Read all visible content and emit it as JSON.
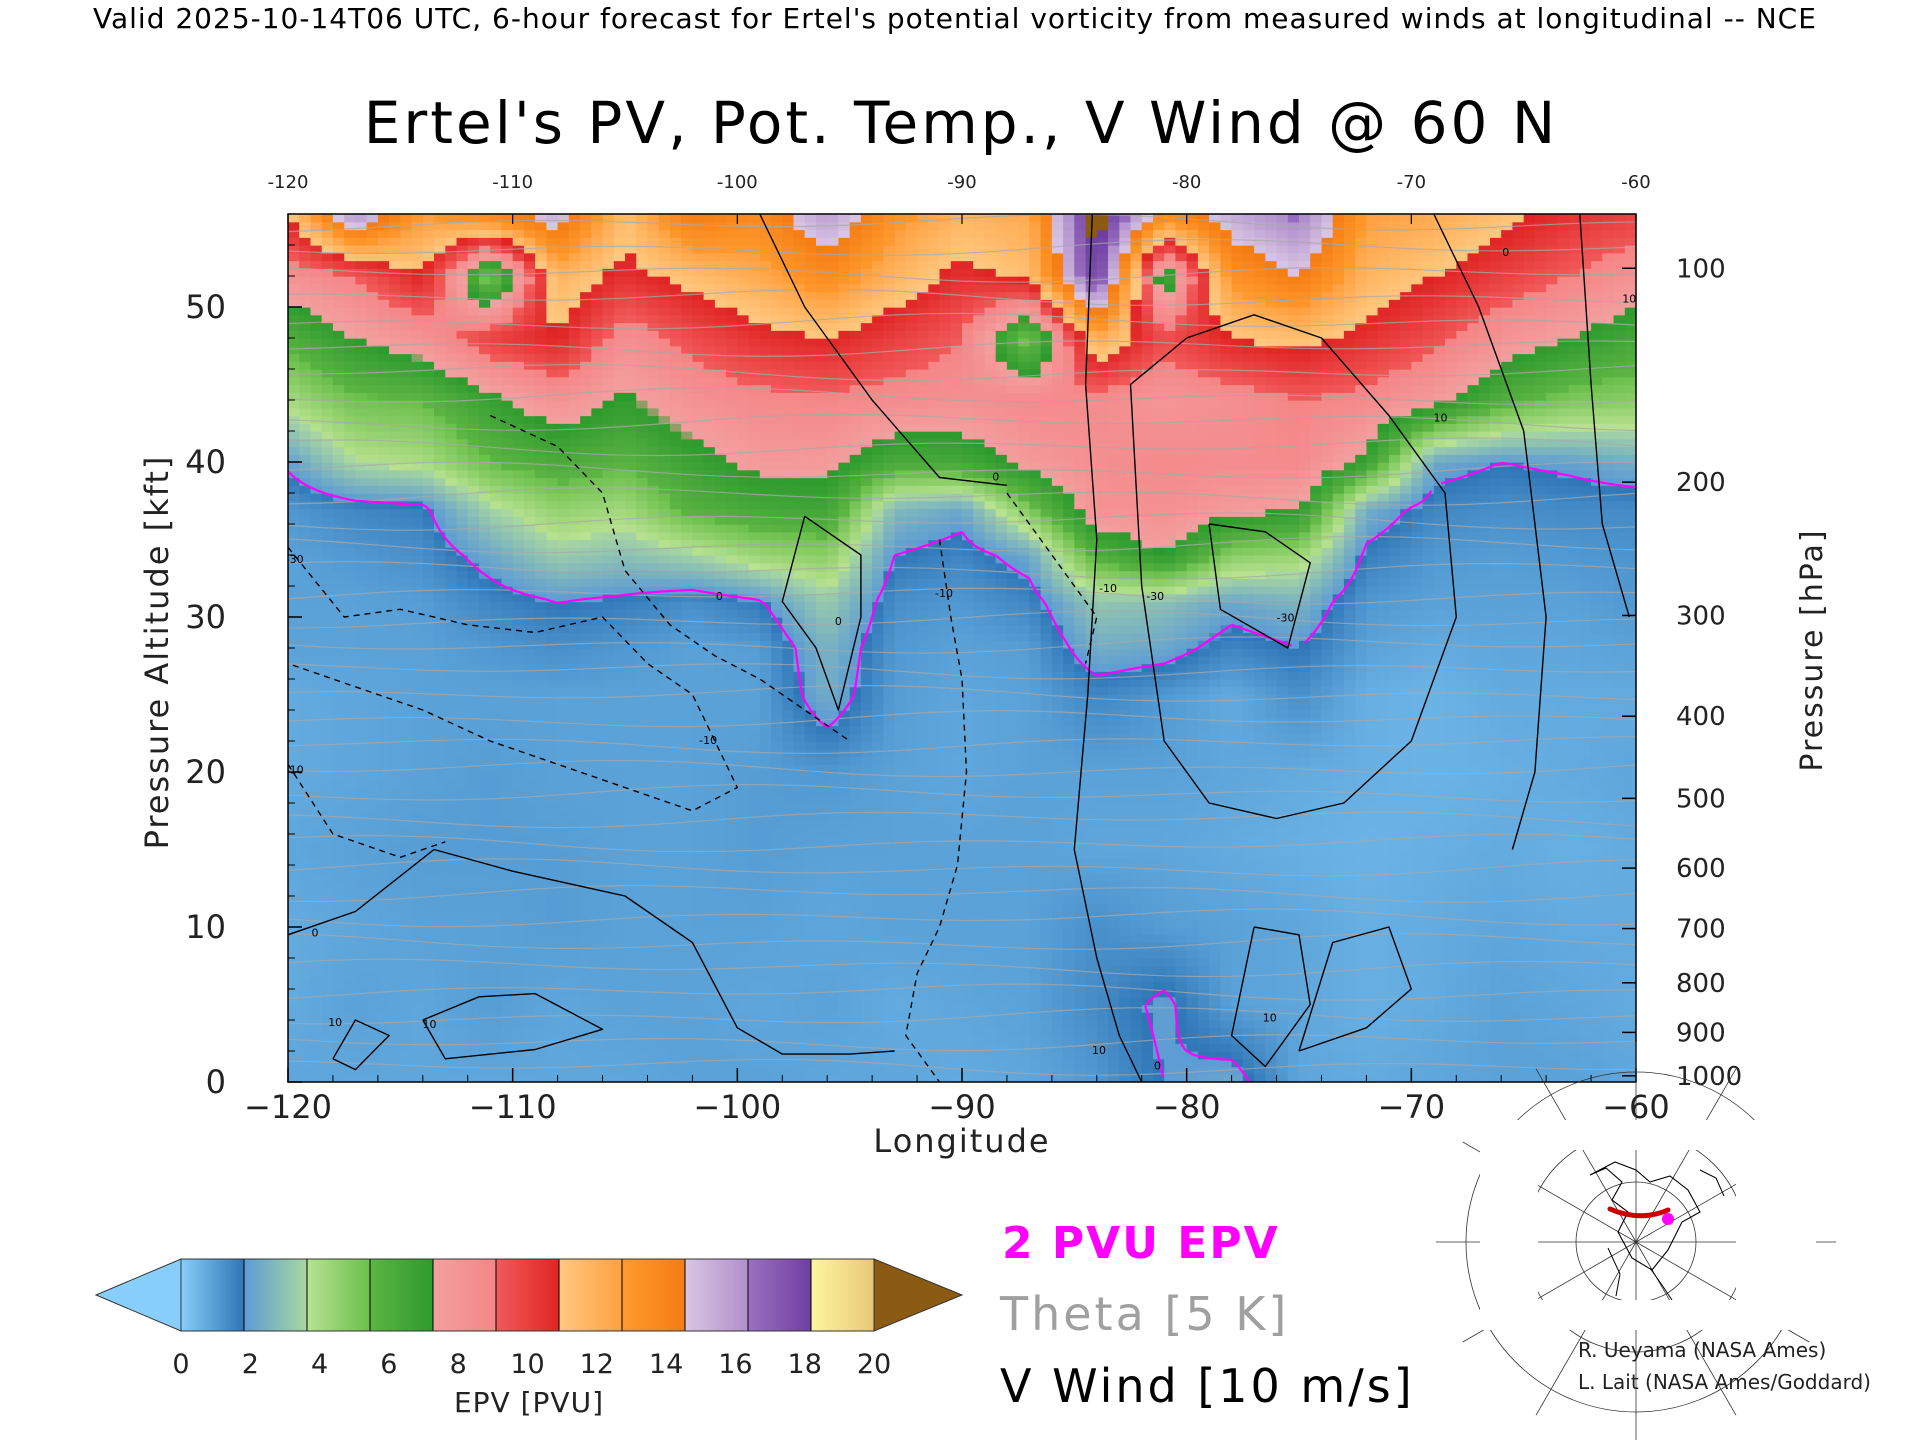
{
  "header": {
    "valid_line": "Valid 2025-10-14T06 UTC, 6-hour forecast for Ertel's potential vorticity from measured winds at longitudinal -- NCE"
  },
  "chart_data": {
    "type": "heatmap",
    "title": "Ertel's PV, Pot. Temp., V Wind @ 60 N",
    "xlabel": "Longitude",
    "ylabel": "Pressure Altitude [kft]",
    "ylabel_right": "Pressure [hPa]",
    "xlim": [
      -120,
      -60
    ],
    "ylim": [
      0,
      56
    ],
    "x_ticks": [
      -120,
      -110,
      -100,
      -90,
      -80,
      -70,
      -60
    ],
    "x_tick_labels": [
      "−120",
      "−110",
      "−100",
      "−90",
      "−80",
      "−70",
      "−60"
    ],
    "x_top_tick_labels": [
      "-120",
      "-110",
      "-100",
      "-90",
      "-80",
      "-70",
      "-60"
    ],
    "y_ticks": [
      0,
      10,
      20,
      30,
      40,
      50
    ],
    "y_tick_labels": [
      "0",
      "10",
      "20",
      "30",
      "40",
      "50"
    ],
    "pressure_ticks": [
      {
        "hpa": 100,
        "label": "100",
        "kft": 52.5
      },
      {
        "hpa": 200,
        "label": "200",
        "kft": 38.7
      },
      {
        "hpa": 300,
        "label": "300",
        "kft": 30.1
      },
      {
        "hpa": 400,
        "label": "400",
        "kft": 23.6
      },
      {
        "hpa": 500,
        "label": "500",
        "kft": 18.3
      },
      {
        "hpa": 600,
        "label": "600",
        "kft": 13.8
      },
      {
        "hpa": 700,
        "label": "700",
        "kft": 9.9
      },
      {
        "hpa": 800,
        "label": "800",
        "kft": 6.4
      },
      {
        "hpa": 900,
        "label": "900",
        "kft": 3.2
      },
      {
        "hpa": 1000,
        "label": "1000",
        "kft": 0.4
      }
    ],
    "grid": false,
    "epv_surface": {
      "x": [
        -120,
        -117,
        -114,
        -111,
        -108,
        -105,
        -102,
        -99,
        -96,
        -93,
        -90,
        -87,
        -84,
        -81,
        -78,
        -75,
        -72,
        -69,
        -66,
        -63,
        -60
      ],
      "y": [
        0,
        5,
        10,
        15,
        20,
        25,
        28,
        31,
        34,
        37,
        40,
        44,
        48,
        52,
        56
      ],
      "z": [
        [
          0.9,
          0.9,
          0.9,
          0.9,
          0.9,
          0.9,
          1.0,
          1.0,
          0.9,
          0.9,
          0.8,
          0.9,
          1.2,
          2.0,
          2.4,
          0.9,
          0.8,
          0.9,
          1.0,
          1.0,
          0.9
        ],
        [
          0.8,
          1.0,
          0.9,
          1.1,
          0.9,
          1.0,
          1.0,
          0.9,
          1.0,
          0.8,
          0.9,
          1.0,
          1.5,
          2.2,
          1.0,
          0.9,
          0.7,
          0.8,
          1.0,
          0.9,
          0.8
        ],
        [
          0.8,
          0.9,
          1.0,
          1.0,
          1.1,
          1.0,
          1.0,
          1.0,
          0.9,
          1.0,
          1.0,
          1.0,
          1.4,
          1.1,
          1.0,
          0.9,
          0.7,
          0.8,
          0.9,
          0.8,
          0.8
        ],
        [
          0.9,
          1.0,
          1.1,
          1.1,
          1.1,
          1.0,
          1.0,
          1.1,
          1.0,
          1.0,
          1.0,
          1.0,
          0.9,
          0.9,
          0.8,
          0.7,
          0.6,
          0.7,
          0.8,
          0.7,
          0.8
        ],
        [
          0.8,
          0.9,
          1.0,
          1.1,
          1.0,
          1.0,
          1.0,
          1.1,
          1.2,
          1.0,
          0.9,
          1.0,
          1.0,
          1.0,
          0.9,
          0.8,
          0.7,
          0.6,
          0.7,
          0.8,
          0.9
        ],
        [
          0.8,
          0.9,
          1.0,
          1.0,
          1.0,
          1.0,
          1.0,
          1.0,
          2.6,
          1.1,
          0.9,
          1.0,
          1.6,
          1.2,
          0.8,
          1.4,
          0.7,
          0.6,
          0.8,
          0.8,
          0.8
        ],
        [
          1.0,
          1.0,
          1.0,
          1.2,
          1.4,
          1.2,
          1.0,
          1.1,
          2.8,
          1.2,
          1.0,
          1.1,
          2.6,
          2.4,
          1.6,
          2.0,
          1.0,
          0.8,
          0.9,
          0.9,
          1.0
        ],
        [
          1.0,
          1.0,
          1.1,
          1.6,
          2.0,
          1.8,
          1.4,
          1.9,
          3.6,
          1.4,
          1.2,
          1.6,
          3.4,
          3.2,
          2.4,
          2.8,
          1.2,
          1.0,
          1.0,
          1.0,
          1.2
        ],
        [
          1.0,
          1.2,
          1.4,
          2.4,
          3.6,
          3.2,
          3.8,
          4.8,
          5.2,
          2.0,
          1.6,
          2.4,
          6.5,
          8.0,
          5.2,
          4.8,
          1.8,
          1.2,
          1.1,
          1.2,
          1.3
        ],
        [
          1.2,
          1.6,
          1.8,
          3.8,
          5.0,
          4.6,
          6.4,
          7.0,
          7.2,
          3.0,
          2.4,
          5.5,
          9.0,
          9.2,
          8.5,
          8.0,
          2.6,
          1.6,
          1.4,
          1.5,
          1.5
        ],
        [
          2.2,
          4.0,
          4.4,
          6.0,
          6.8,
          6.2,
          7.4,
          8.4,
          8.5,
          6.8,
          7.0,
          8.5,
          9.2,
          9.6,
          9.4,
          9.6,
          7.5,
          2.4,
          2.0,
          2.2,
          2.6
        ],
        [
          4.5,
          5.8,
          6.0,
          7.5,
          9.0,
          7.8,
          9.0,
          9.6,
          9.8,
          9.4,
          9.2,
          9.6,
          9.4,
          8.8,
          9.2,
          10.0,
          9.6,
          8.5,
          6.5,
          5.5,
          5.2
        ],
        [
          6.5,
          8.0,
          9.0,
          11.0,
          12.0,
          9.2,
          10.5,
          11.5,
          12.0,
          11.0,
          10.0,
          5.2,
          13.5,
          10.5,
          12.0,
          12.5,
          11.5,
          10.5,
          9.0,
          8.0,
          7.0
        ],
        [
          9.0,
          10.0,
          12.0,
          5.0,
          13.0,
          11.5,
          12.5,
          13.5,
          15.0,
          13.0,
          11.5,
          12.5,
          20.0,
          6.5,
          14.5,
          16.0,
          13.0,
          12.0,
          11.0,
          10.0,
          9.0
        ],
        [
          12.0,
          18.0,
          14.0,
          15.5,
          17.0,
          12.5,
          16.0,
          15.0,
          17.5,
          14.5,
          13.0,
          13.5,
          21.0,
          15.0,
          17.0,
          18.5,
          14.0,
          13.5,
          12.5,
          11.5,
          11.0
        ]
      ]
    },
    "contour_labels": [
      {
        "text": "10",
        "x": -117.9,
        "y": 3.6
      },
      {
        "text": "10",
        "x": -113.7,
        "y": 3.5
      },
      {
        "text": "0",
        "x": -118.8,
        "y": 9.4
      },
      {
        "text": "-10",
        "x": -119.7,
        "y": 19.9
      },
      {
        "text": "-30",
        "x": -119.7,
        "y": 33.5
      },
      {
        "text": "-10",
        "x": -101.3,
        "y": 21.8
      },
      {
        "text": "-10",
        "x": -90.8,
        "y": 31.3
      },
      {
        "text": "0",
        "x": -88.5,
        "y": 38.8
      },
      {
        "text": "0",
        "x": -95.5,
        "y": 29.5
      },
      {
        "text": "0",
        "x": -100.8,
        "y": 31.1
      },
      {
        "text": "-10",
        "x": -83.5,
        "y": 31.6
      },
      {
        "text": "-30",
        "x": -81.4,
        "y": 31.1
      },
      {
        "text": "-30",
        "x": -75.6,
        "y": 29.7
      },
      {
        "text": "10",
        "x": -76.3,
        "y": 3.9
      },
      {
        "text": "10",
        "x": -83.9,
        "y": 1.8
      },
      {
        "text": "0",
        "x": -81.3,
        "y": 0.8
      },
      {
        "text": "10",
        "x": -68.7,
        "y": 42.6
      },
      {
        "text": "0",
        "x": -65.8,
        "y": 53.3
      },
      {
        "text": "10",
        "x": -60.3,
        "y": 50.3
      }
    ],
    "colorbar": {
      "label": "EPV [PVU]",
      "ticks": [
        "0",
        "2",
        "4",
        "6",
        "8",
        "10",
        "12",
        "14",
        "16",
        "18",
        "20"
      ],
      "under_color": "#87CEFA",
      "over_color": "#8B5A13",
      "segments": [
        [
          "#87CEFA",
          "#2E75B6"
        ],
        [
          "#5C9BD5",
          "#A9D8A0"
        ],
        [
          "#B9E291",
          "#6ABF4B"
        ],
        [
          "#5DB543",
          "#2E9A2E"
        ],
        [
          "#F3A0A0",
          "#F58585"
        ],
        [
          "#F25A5A",
          "#E02424"
        ],
        [
          "#FFC880",
          "#FFA040"
        ],
        [
          "#FF9A2E",
          "#F47C14"
        ],
        [
          "#D9C6E3",
          "#B08FCB"
        ],
        [
          "#9A70C0",
          "#6E3FA0"
        ],
        [
          "#FFF5A0",
          "#E8C878"
        ]
      ]
    }
  },
  "legend": {
    "pvu_line": "2 PVU EPV",
    "theta_line": "Theta [5 K]",
    "wind_line": "V Wind [10 m/s]",
    "pvu_color": "#FF00FF",
    "theta_color": "#A0A0A0",
    "wind_color": "#000000"
  },
  "credits": {
    "line1": "R. Ueyama (NASA Ames)",
    "line2": "L. Lait (NASA Ames/Goddard)"
  },
  "inset_map": {
    "highlight_color": "#CC0000",
    "marker_color": "#FF00FF"
  }
}
